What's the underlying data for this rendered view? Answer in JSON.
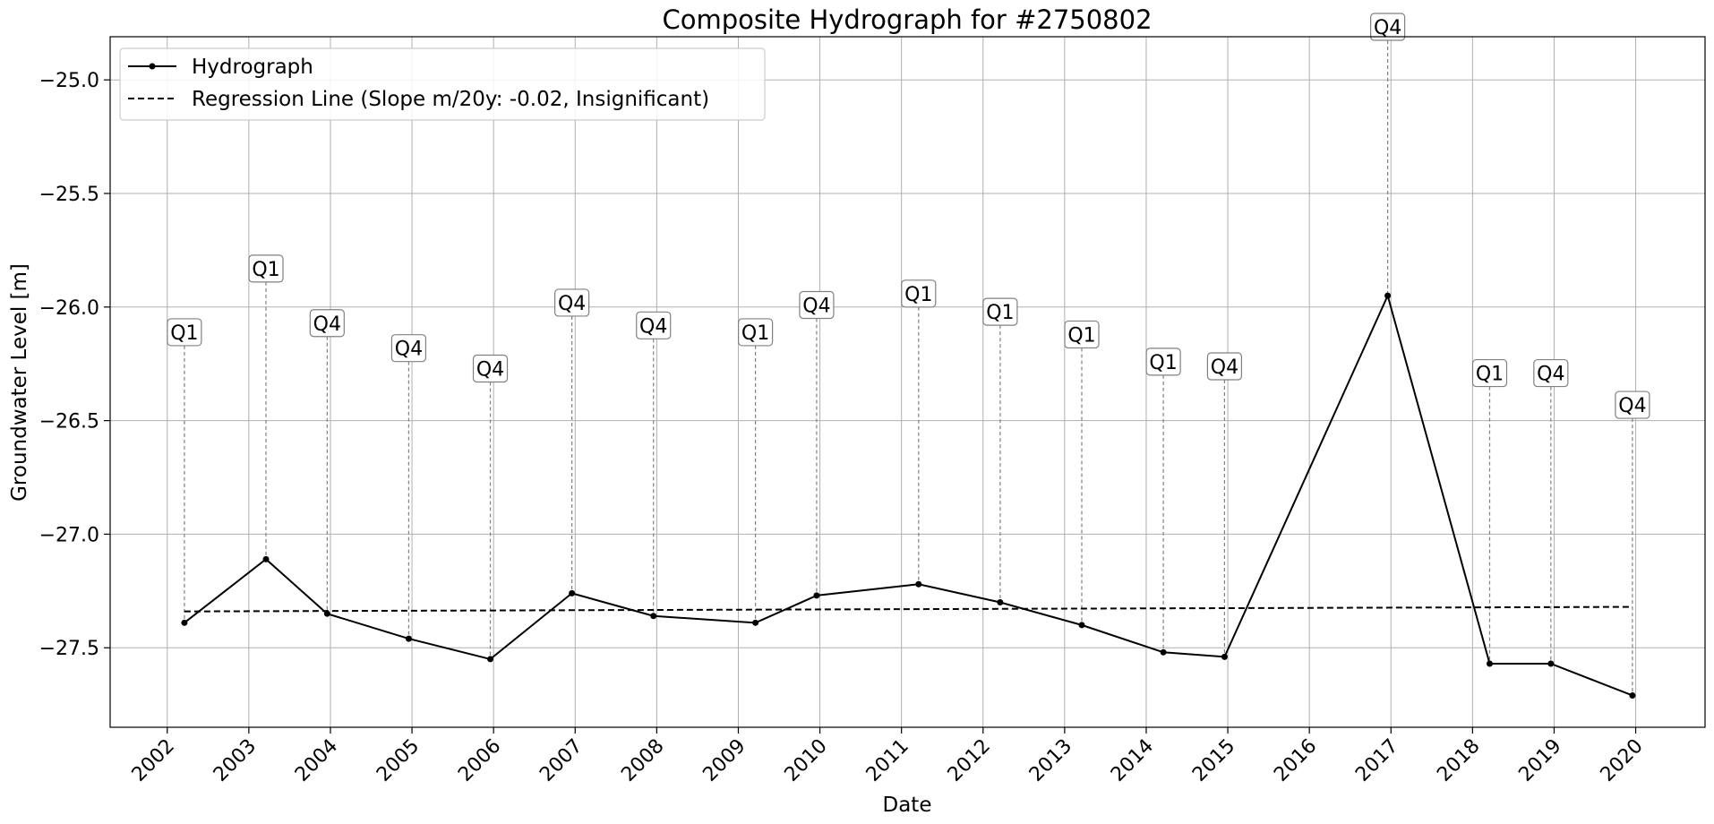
{
  "chart_data": {
    "type": "line",
    "title": "Composite Hydrograph for  #2750802",
    "xlabel": "Date",
    "ylabel": "Groundwater Level [m]",
    "x_ticks": [
      "2002",
      "2003",
      "2004",
      "2005",
      "2006",
      "2007",
      "2008",
      "2009",
      "2010",
      "2011",
      "2012",
      "2013",
      "2014",
      "2015",
      "2016",
      "2017",
      "2018",
      "2019",
      "2020"
    ],
    "y_ticks": [
      "−25.0",
      "−25.5",
      "−26.0",
      "−26.5",
      "−27.0",
      "−27.5"
    ],
    "y_tick_values": [
      -25.0,
      -25.5,
      -26.0,
      -26.5,
      -27.0,
      -27.5
    ],
    "xlim": [
      2001.3,
      2020.85
    ],
    "ylim": [
      -27.85,
      -24.81
    ],
    "grid": true,
    "legend_position": "top-left",
    "series": [
      {
        "name": "Hydrograph",
        "color": "#000000",
        "x": [
          2002.21,
          2003.21,
          2003.96,
          2004.96,
          2005.96,
          2006.96,
          2007.96,
          2009.21,
          2009.96,
          2011.21,
          2012.21,
          2013.21,
          2014.21,
          2014.96,
          2016.96,
          2018.21,
          2018.96,
          2019.96
        ],
        "y": [
          -27.39,
          -27.11,
          -27.35,
          -27.46,
          -27.55,
          -27.26,
          -27.36,
          -27.39,
          -27.27,
          -27.22,
          -27.3,
          -27.4,
          -27.52,
          -27.54,
          -25.95,
          -27.57,
          -27.57,
          -27.71
        ],
        "labels": [
          "Q1",
          "Q1",
          "Q4",
          "Q4",
          "Q4",
          "Q4",
          "Q4",
          "Q1",
          "Q4",
          "Q1",
          "Q1",
          "Q1",
          "Q1",
          "Q4",
          "Q4",
          "Q1",
          "Q4",
          "Q4"
        ]
      },
      {
        "name": "Regression Line (Slope m/20y: -0.02, Insignificant)",
        "style": "dashed",
        "color": "#000000",
        "x": [
          2002.21,
          2019.96
        ],
        "y": [
          -27.34,
          -27.32
        ]
      }
    ]
  }
}
